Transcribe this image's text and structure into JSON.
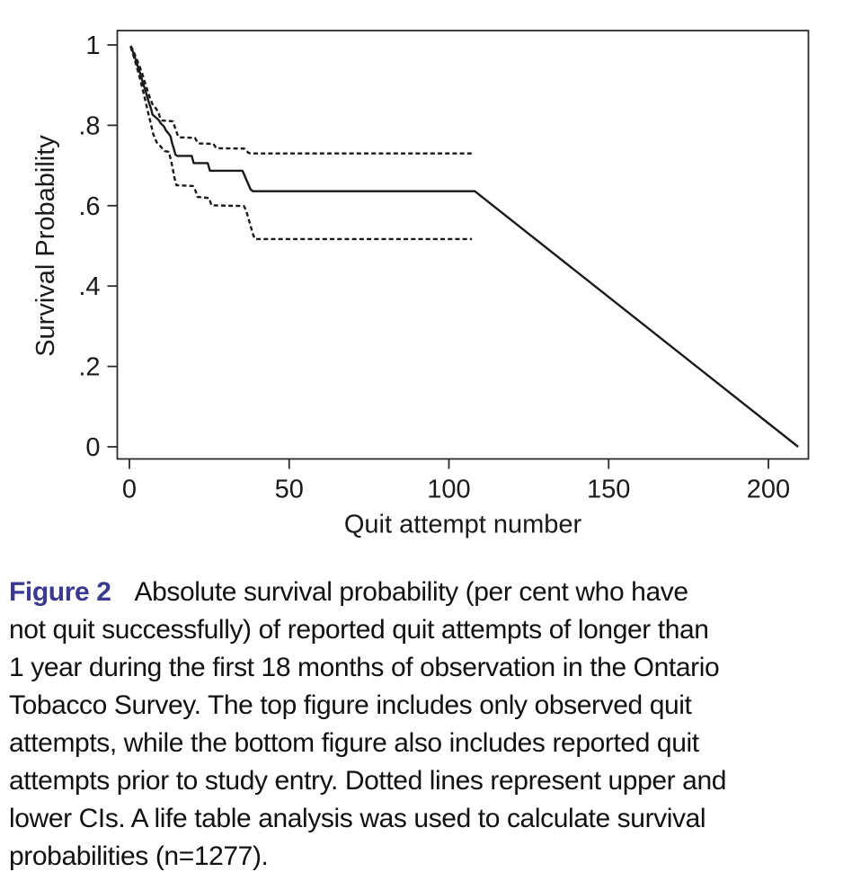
{
  "caption": {
    "label": "Figure 2",
    "label_color": "#3b3a8e",
    "line1_rest": "Absolute survival probability (per cent who have",
    "lines": [
      "not quit successfully) of reported quit attempts of longer than",
      "1 year during the first 18 months of observation in the Ontario",
      "Tobacco Survey. The top figure includes only observed quit",
      "attempts, while the bottom figure also includes reported quit",
      "attempts prior to study entry. Dotted lines represent upper and",
      "lower CIs. A life table analysis was used to calculate survival",
      "probabilities (n=1277)."
    ]
  },
  "chart_data": {
    "type": "line",
    "title": "",
    "xlabel": "Quit attempt number",
    "ylabel": "Survival Probability",
    "xlim": [
      0,
      212
    ],
    "ylim": [
      0,
      1.04
    ],
    "grid": false,
    "legend": "none",
    "line_color": "#1a1a1a",
    "x_ticks": [
      {
        "v": 0,
        "label": "0"
      },
      {
        "v": 50,
        "label": "50"
      },
      {
        "v": 100,
        "label": "100"
      },
      {
        "v": 150,
        "label": "150"
      },
      {
        "v": 200,
        "label": "200"
      }
    ],
    "y_ticks": [
      {
        "v": 0,
        "label": "0"
      },
      {
        "v": 0.2,
        "label": ".2"
      },
      {
        "v": 0.4,
        "label": ".4"
      },
      {
        "v": 0.6,
        "label": ".6"
      },
      {
        "v": 0.8,
        "label": ".8"
      },
      {
        "v": 1,
        "label": "1"
      }
    ],
    "series": [
      {
        "name": "survival-estimate",
        "style": "solid",
        "points": [
          [
            0.4,
            0.997
          ],
          [
            1,
            0.985
          ],
          [
            2,
            0.962
          ],
          [
            3,
            0.938
          ],
          [
            4,
            0.912
          ],
          [
            5,
            0.886
          ],
          [
            6,
            0.86
          ],
          [
            6.9,
            0.838
          ],
          [
            7.2,
            0.827
          ],
          [
            8.2,
            0.82
          ],
          [
            9.2,
            0.813
          ],
          [
            9.8,
            0.805
          ],
          [
            10.8,
            0.797
          ],
          [
            11.4,
            0.788
          ],
          [
            12.2,
            0.78
          ],
          [
            12.9,
            0.772
          ],
          [
            13.3,
            0.757
          ],
          [
            13.9,
            0.742
          ],
          [
            14.4,
            0.727
          ],
          [
            15,
            0.724
          ],
          [
            19.5,
            0.724
          ],
          [
            20.1,
            0.706
          ],
          [
            24.5,
            0.706
          ],
          [
            25.2,
            0.687
          ],
          [
            35.4,
            0.687
          ],
          [
            37.9,
            0.641
          ],
          [
            38.6,
            0.636
          ],
          [
            108.1,
            0.636
          ],
          [
            209.3,
            0
          ]
        ]
      },
      {
        "name": "upper-ci",
        "style": "dashed",
        "points": [
          [
            0.4,
            0.998
          ],
          [
            1,
            0.989
          ],
          [
            2,
            0.97
          ],
          [
            3,
            0.95
          ],
          [
            4,
            0.929
          ],
          [
            5,
            0.903
          ],
          [
            6,
            0.878
          ],
          [
            7,
            0.857
          ],
          [
            7.4,
            0.849
          ],
          [
            8.3,
            0.842
          ],
          [
            9,
            0.833
          ],
          [
            9.7,
            0.817
          ],
          [
            10.2,
            0.812
          ],
          [
            13.6,
            0.81
          ],
          [
            14.3,
            0.794
          ],
          [
            15,
            0.778
          ],
          [
            15.6,
            0.77
          ],
          [
            20.5,
            0.769
          ],
          [
            21.5,
            0.755
          ],
          [
            26.3,
            0.754
          ],
          [
            27.2,
            0.743
          ],
          [
            36,
            0.742
          ],
          [
            37.3,
            0.731
          ],
          [
            38.2,
            0.73
          ],
          [
            107.7,
            0.73
          ]
        ]
      },
      {
        "name": "lower-ci",
        "style": "dashed",
        "points": [
          [
            0.4,
            0.995
          ],
          [
            1,
            0.98
          ],
          [
            2,
            0.954
          ],
          [
            3,
            0.925
          ],
          [
            4,
            0.894
          ],
          [
            5,
            0.861
          ],
          [
            6,
            0.827
          ],
          [
            7,
            0.794
          ],
          [
            7.5,
            0.777
          ],
          [
            8.5,
            0.758
          ],
          [
            9.5,
            0.75
          ],
          [
            10.5,
            0.74
          ],
          [
            11,
            0.736
          ],
          [
            12.3,
            0.734
          ],
          [
            12.9,
            0.716
          ],
          [
            13.5,
            0.695
          ],
          [
            14,
            0.672
          ],
          [
            14.7,
            0.651
          ],
          [
            19.9,
            0.649
          ],
          [
            20.7,
            0.637
          ],
          [
            21.3,
            0.622
          ],
          [
            24.9,
            0.619
          ],
          [
            25.7,
            0.601
          ],
          [
            35.8,
            0.599
          ],
          [
            36.5,
            0.589
          ],
          [
            38.7,
            0.528
          ],
          [
            39.3,
            0.517
          ],
          [
            107.2,
            0.517
          ]
        ]
      }
    ]
  }
}
